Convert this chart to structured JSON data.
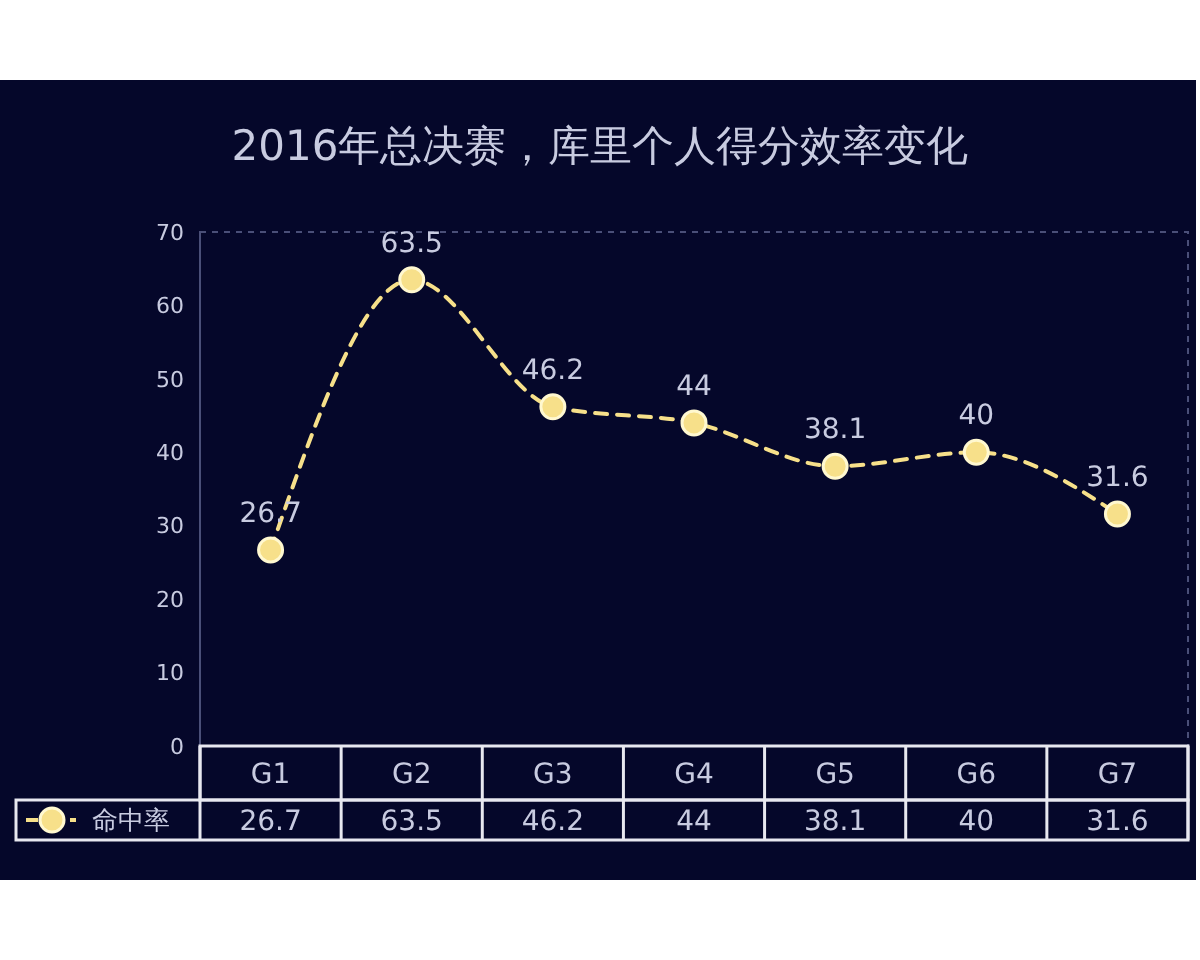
{
  "chart_data": {
    "type": "line",
    "title": "2016年总决赛，库里个人得分效率变化",
    "categories": [
      "G1",
      "G2",
      "G3",
      "G4",
      "G5",
      "G6",
      "G7"
    ],
    "series": [
      {
        "name": "命中率",
        "color": "#f7e08a",
        "values": [
          26.7,
          63.5,
          46.2,
          44,
          38.1,
          40,
          31.6
        ],
        "value_labels": [
          "26.7",
          "63.5",
          "46.2",
          "44",
          "38.1",
          "40",
          "31.6"
        ]
      }
    ],
    "ylim": [
      0,
      70
    ],
    "yticks": [
      0,
      10,
      20,
      30,
      40,
      50,
      60,
      70
    ],
    "grid": false,
    "legend": "bottom",
    "marker": "circle",
    "line_style": "dashed",
    "data_labels": true,
    "annotations": [
      "26.7",
      "63.5",
      "46.2",
      "44",
      "38.1",
      "40",
      "31.6"
    ]
  }
}
